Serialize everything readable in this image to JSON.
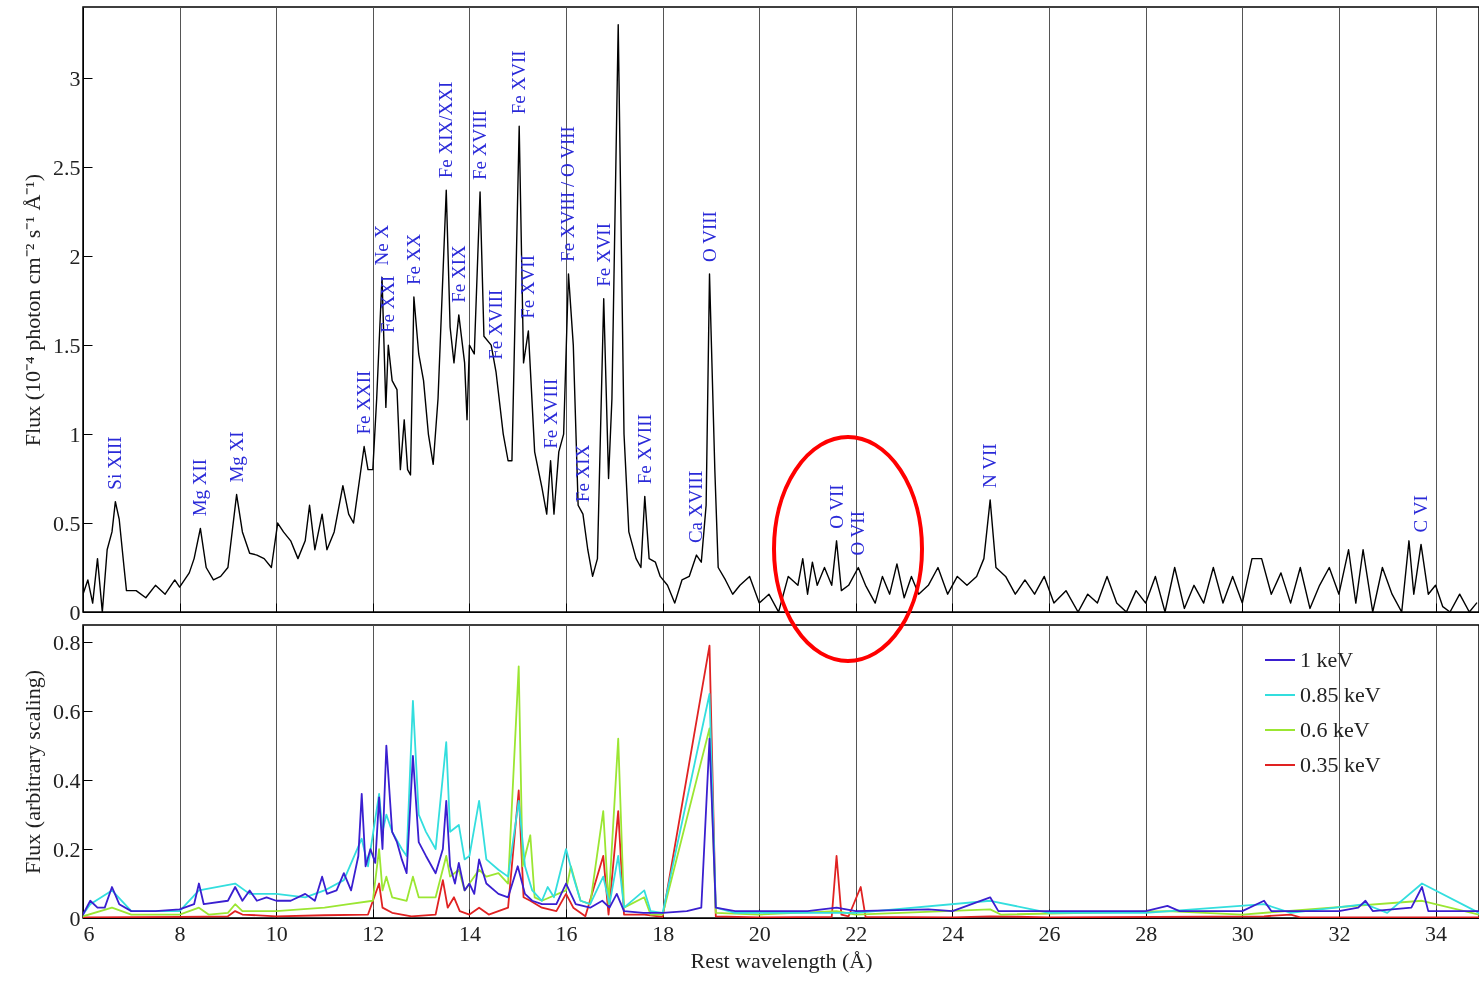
{
  "chart_data": [
    {
      "type": "line",
      "ylabel": "Flux (10⁻⁴ photon cm⁻² s⁻¹ Å⁻¹)",
      "xlim": [
        6,
        34.9
      ],
      "xticks": [
        6,
        8,
        10,
        12,
        14,
        16,
        18,
        20,
        22,
        24,
        26,
        28,
        30,
        32,
        34
      ],
      "ylim": [
        0,
        3.4
      ],
      "yticks": [
        0,
        0.5,
        1,
        1.5,
        2,
        2.5,
        3
      ],
      "grid": "x",
      "tick_labels": "y",
      "series": [
        {
          "color": "#000000",
          "x": [
            6.0,
            6.1,
            6.2,
            6.3,
            6.4,
            6.5,
            6.6,
            6.67,
            6.75,
            6.85,
            6.9,
            7.1,
            7.3,
            7.5,
            7.7,
            7.9,
            8.0,
            8.2,
            8.3,
            8.43,
            8.55,
            8.7,
            8.85,
            9.0,
            9.18,
            9.3,
            9.45,
            9.6,
            9.75,
            9.9,
            10.03,
            10.15,
            10.3,
            10.45,
            10.6,
            10.69,
            10.8,
            10.95,
            11.05,
            11.2,
            11.38,
            11.5,
            11.6,
            11.82,
            11.9,
            12.0,
            12.08,
            12.19,
            12.27,
            12.32,
            12.4,
            12.5,
            12.57,
            12.65,
            12.72,
            12.78,
            12.85,
            12.95,
            13.05,
            13.15,
            13.25,
            13.35,
            13.52,
            13.6,
            13.68,
            13.78,
            13.9,
            13.95,
            14.0,
            14.1,
            14.22,
            14.3,
            14.45,
            14.55,
            14.7,
            14.8,
            14.88,
            15.03,
            15.12,
            15.22,
            15.35,
            15.5,
            15.6,
            15.68,
            15.75,
            15.85,
            15.95,
            16.05,
            16.15,
            16.25,
            16.35,
            16.45,
            16.55,
            16.65,
            16.78,
            16.88,
            16.95,
            17.08,
            17.2,
            17.3,
            17.45,
            17.55,
            17.63,
            17.72,
            17.85,
            17.95,
            18.1,
            18.25,
            18.4,
            18.55,
            18.7,
            18.8,
            18.9,
            18.97,
            19.08,
            19.15,
            19.3,
            19.45,
            19.6,
            19.8,
            20.0,
            20.2,
            20.4,
            20.6,
            20.8,
            20.9,
            21.0,
            21.1,
            21.2,
            21.35,
            21.5,
            21.6,
            21.7,
            21.85,
            22.05,
            22.2,
            22.4,
            22.55,
            22.7,
            22.85,
            23.0,
            23.15,
            23.3,
            23.5,
            23.7,
            23.9,
            24.1,
            24.3,
            24.5,
            24.65,
            24.78,
            24.9,
            25.1,
            25.3,
            25.5,
            25.7,
            25.9,
            26.1,
            26.35,
            26.6,
            26.8,
            27.0,
            27.2,
            27.4,
            27.6,
            27.8,
            28.0,
            28.2,
            28.4,
            28.6,
            28.8,
            29.0,
            29.2,
            29.4,
            29.6,
            29.8,
            30.0,
            30.2,
            30.4,
            30.6,
            30.8,
            31.0,
            31.2,
            31.4,
            31.6,
            31.8,
            32.0,
            32.2,
            32.35,
            32.5,
            32.7,
            32.9,
            33.1,
            33.3,
            33.45,
            33.55,
            33.7,
            33.85,
            34.0,
            34.15,
            34.3,
            34.5,
            34.7,
            34.85
          ],
          "values": [
            0.1,
            0.18,
            0.05,
            0.3,
            0,
            0.35,
            0.45,
            0.62,
            0.52,
            0.25,
            0.12,
            0.12,
            0.08,
            0.15,
            0.1,
            0.18,
            0.14,
            0.22,
            0.3,
            0.47,
            0.25,
            0.18,
            0.2,
            0.25,
            0.66,
            0.45,
            0.33,
            0.32,
            0.3,
            0.25,
            0.5,
            0.45,
            0.4,
            0.3,
            0.4,
            0.6,
            0.35,
            0.55,
            0.35,
            0.45,
            0.71,
            0.55,
            0.5,
            0.93,
            0.8,
            0.8,
            1.2,
            1.88,
            1.15,
            1.5,
            1.3,
            1.25,
            0.8,
            1.08,
            0.8,
            0.77,
            1.77,
            1.45,
            1.3,
            1.0,
            0.83,
            1.2,
            2.37,
            1.6,
            1.4,
            1.67,
            1.4,
            1.08,
            1.5,
            1.45,
            2.36,
            1.55,
            1.5,
            1.35,
            1.0,
            0.85,
            0.85,
            2.73,
            1.4,
            1.58,
            0.9,
            0.7,
            0.55,
            0.85,
            0.55,
            0.9,
            1.0,
            1.9,
            1.5,
            0.6,
            0.55,
            0.35,
            0.2,
            0.3,
            1.76,
            0.75,
            1.2,
            3.3,
            1.0,
            0.45,
            0.3,
            0.25,
            0.65,
            0.3,
            0.28,
            0.2,
            0.15,
            0.05,
            0.18,
            0.2,
            0.32,
            0.28,
            0.6,
            1.9,
            0.8,
            0.25,
            0.18,
            0.1,
            0.15,
            0.2,
            0.05,
            0.1,
            0,
            0.2,
            0.15,
            0.3,
            0.1,
            0.28,
            0.15,
            0.25,
            0.15,
            0.4,
            0.12,
            0.15,
            0.25,
            0.15,
            0.05,
            0.2,
            0.1,
            0.27,
            0.08,
            0.2,
            0.1,
            0.15,
            0.25,
            0.1,
            0.2,
            0.15,
            0.2,
            0.3,
            0.63,
            0.25,
            0.2,
            0.1,
            0.18,
            0.1,
            0.2,
            0.05,
            0.12,
            0,
            0.1,
            0.05,
            0.2,
            0.05,
            0,
            0.12,
            0.05,
            0.2,
            0,
            0.25,
            0.02,
            0.15,
            0.05,
            0.25,
            0.05,
            0.2,
            0.05,
            0.3,
            0.3,
            0.1,
            0.22,
            0.05,
            0.25,
            0.02,
            0.15,
            0.25,
            0.1,
            0.35,
            0.05,
            0.35,
            0,
            0.25,
            0.1,
            0,
            0.4,
            0.1,
            0.38,
            0.1,
            0.15,
            0.03,
            0,
            0.1,
            0,
            0.05
          ]
        }
      ],
      "annotations": [
        {
          "text": "Si XIII",
          "x": 6.67,
          "y": 0.62
        },
        {
          "text": "Mg XII",
          "x": 8.43,
          "y": 0.47
        },
        {
          "text": "Mg XI",
          "x": 9.18,
          "y": 0.66
        },
        {
          "text": "Fe XXII",
          "x": 11.82,
          "y": 0.93
        },
        {
          "text": "Ne X",
          "x": 12.19,
          "y": 1.88
        },
        {
          "text": "Fe XXI",
          "x": 12.32,
          "y": 1.5
        },
        {
          "text": "Fe XX",
          "x": 12.85,
          "y": 1.77
        },
        {
          "text": "Fe XIX/XXI",
          "x": 13.52,
          "y": 2.37
        },
        {
          "text": "Fe XIX",
          "x": 13.78,
          "y": 1.67
        },
        {
          "text": "Fe XVIII",
          "x": 14.22,
          "y": 2.36
        },
        {
          "text": "Fe XVIII",
          "x": 14.55,
          "y": 1.35
        },
        {
          "text": "Fe XVII",
          "x": 15.03,
          "y": 2.73
        },
        {
          "text": "Fe XVII",
          "x": 15.22,
          "y": 1.58
        },
        {
          "text": "Fe XVIII",
          "x": 15.68,
          "y": 0.85
        },
        {
          "text": "Fe XVIII / O VIII",
          "x": 16.05,
          "y": 1.9
        },
        {
          "text": "Fe XIX",
          "x": 16.35,
          "y": 0.55
        },
        {
          "text": "Fe XVII",
          "x": 16.78,
          "y": 1.76
        },
        {
          "text": "Fe XVIII",
          "x": 17.63,
          "y": 0.65
        },
        {
          "text": "Ca XVIII",
          "x": 18.7,
          "y": 0.32
        },
        {
          "text": "O VIII",
          "x": 18.97,
          "y": 1.9
        },
        {
          "text": "O VII",
          "x": 21.6,
          "y": 0.4
        },
        {
          "text": "O VII",
          "x": 22.05,
          "y": 0.25
        },
        {
          "text": "N VII",
          "x": 24.78,
          "y": 0.63
        },
        {
          "text": "C VI",
          "x": 33.7,
          "y": 0.38
        }
      ]
    },
    {
      "type": "line",
      "xlabel": "Rest wavelength (Å)",
      "ylabel": "Flux (arbitrary scaling)",
      "xlim": [
        6,
        34.9
      ],
      "xticks": [
        6,
        8,
        10,
        12,
        14,
        16,
        18,
        20,
        22,
        24,
        26,
        28,
        30,
        32,
        34
      ],
      "ylim": [
        0,
        0.85
      ],
      "yticks": [
        0,
        0.2,
        0.4,
        0.6,
        0.8
      ],
      "grid": "x",
      "legend": "top right",
      "series": [
        {
          "name": "1 keV",
          "color": "#3a1fd0",
          "x": [
            6,
            6.15,
            6.3,
            6.45,
            6.6,
            6.75,
            7.0,
            7.5,
            8.0,
            8.3,
            8.4,
            8.5,
            9.0,
            9.15,
            9.3,
            9.45,
            9.6,
            9.8,
            10.0,
            10.3,
            10.6,
            10.8,
            10.95,
            11.05,
            11.25,
            11.4,
            11.55,
            11.7,
            11.77,
            11.85,
            11.95,
            12.05,
            12.13,
            12.2,
            12.28,
            12.4,
            12.5,
            12.6,
            12.7,
            12.83,
            12.95,
            13.1,
            13.3,
            13.45,
            13.52,
            13.6,
            13.7,
            13.78,
            13.9,
            14.0,
            14.1,
            14.2,
            14.35,
            14.6,
            14.8,
            15.0,
            15.15,
            15.3,
            15.5,
            15.8,
            16.0,
            16.2,
            16.5,
            16.75,
            16.9,
            17.05,
            17.2,
            17.6,
            18.0,
            18.5,
            18.8,
            18.97,
            19.1,
            19.5,
            20,
            21,
            21.6,
            22,
            23.5,
            24,
            24.78,
            24.95,
            26,
            27,
            28,
            28.45,
            28.7,
            30,
            30.45,
            30.6,
            32,
            32.4,
            32.55,
            32.7,
            33.5,
            33.72,
            33.85,
            34.9
          ],
          "values": [
            0.01,
            0.05,
            0.03,
            0.03,
            0.09,
            0.04,
            0.02,
            0.02,
            0.025,
            0.04,
            0.1,
            0.04,
            0.05,
            0.09,
            0.05,
            0.08,
            0.05,
            0.06,
            0.05,
            0.05,
            0.07,
            0.05,
            0.12,
            0.07,
            0.08,
            0.13,
            0.08,
            0.18,
            0.36,
            0.15,
            0.2,
            0.16,
            0.35,
            0.2,
            0.5,
            0.25,
            0.22,
            0.17,
            0.13,
            0.47,
            0.22,
            0.18,
            0.13,
            0.2,
            0.34,
            0.15,
            0.1,
            0.16,
            0.08,
            0.1,
            0.07,
            0.17,
            0.1,
            0.07,
            0.06,
            0.15,
            0.07,
            0.05,
            0.04,
            0.04,
            0.1,
            0.04,
            0.03,
            0.05,
            0.03,
            0.07,
            0.02,
            0.015,
            0.015,
            0.02,
            0.03,
            0.52,
            0.03,
            0.02,
            0.02,
            0.02,
            0.03,
            0.02,
            0.025,
            0.02,
            0.06,
            0.02,
            0.02,
            0.02,
            0.02,
            0.035,
            0.02,
            0.02,
            0.05,
            0.02,
            0.02,
            0.03,
            0.05,
            0.02,
            0.03,
            0.09,
            0.02,
            0.02
          ]
        },
        {
          "name": "0.85 keV",
          "color": "#33dede",
          "x": [
            6,
            6.15,
            6.6,
            7,
            8,
            8.4,
            9.15,
            9.45,
            10,
            10.6,
            11,
            11.4,
            11.77,
            11.9,
            12.13,
            12.2,
            12.28,
            12.4,
            12.6,
            12.7,
            12.83,
            12.95,
            13.1,
            13.3,
            13.52,
            13.6,
            13.78,
            13.9,
            14.0,
            14.2,
            14.35,
            14.6,
            14.8,
            15.02,
            15.15,
            15.3,
            15.5,
            15.62,
            15.75,
            16.0,
            16.15,
            16.3,
            16.5,
            16.77,
            16.9,
            17.08,
            17.2,
            17.62,
            17.75,
            18,
            18.97,
            19.1,
            19.5,
            20,
            22,
            24.78,
            26,
            28,
            30.45,
            31,
            32.55,
            33,
            33.72,
            34.9
          ],
          "values": [
            0.01,
            0.04,
            0.08,
            0.02,
            0.02,
            0.08,
            0.1,
            0.07,
            0.07,
            0.06,
            0.08,
            0.11,
            0.23,
            0.15,
            0.36,
            0.25,
            0.3,
            0.25,
            0.2,
            0.18,
            0.63,
            0.3,
            0.25,
            0.2,
            0.51,
            0.25,
            0.27,
            0.17,
            0.18,
            0.34,
            0.17,
            0.14,
            0.12,
            0.34,
            0.15,
            0.08,
            0.05,
            0.09,
            0.06,
            0.2,
            0.12,
            0.05,
            0.04,
            0.12,
            0.04,
            0.18,
            0.03,
            0.08,
            0.02,
            0.015,
            0.65,
            0.03,
            0.015,
            0.015,
            0.015,
            0.05,
            0.015,
            0.015,
            0.04,
            0.015,
            0.04,
            0.015,
            0.1,
            0.015
          ]
        },
        {
          "name": "0.6 keV",
          "color": "#9be632",
          "x": [
            6,
            6.6,
            7,
            8,
            8.4,
            8.6,
            9,
            9.15,
            9.3,
            10,
            11,
            11.5,
            12.0,
            12.13,
            12.2,
            12.28,
            12.4,
            12.7,
            12.83,
            12.95,
            13.3,
            13.52,
            13.6,
            13.78,
            13.9,
            14.0,
            14.2,
            14.35,
            14.6,
            14.8,
            15.02,
            15.1,
            15.26,
            15.35,
            15.5,
            16.0,
            16.1,
            16.3,
            16.5,
            16.77,
            16.88,
            17.08,
            17.2,
            17.62,
            17.75,
            18,
            18.97,
            19.1,
            20,
            21.6,
            22,
            24.78,
            25,
            28.45,
            30,
            33.72,
            34.9
          ],
          "values": [
            0.005,
            0.03,
            0.01,
            0.01,
            0.03,
            0.01,
            0.015,
            0.04,
            0.02,
            0.02,
            0.03,
            0.04,
            0.05,
            0.2,
            0.08,
            0.12,
            0.06,
            0.05,
            0.12,
            0.06,
            0.06,
            0.18,
            0.12,
            0.14,
            0.08,
            0.1,
            0.14,
            0.12,
            0.13,
            0.1,
            0.73,
            0.15,
            0.24,
            0.06,
            0.05,
            0.08,
            0.15,
            0.05,
            0.04,
            0.31,
            0.04,
            0.52,
            0.03,
            0.06,
            0.01,
            0.01,
            0.55,
            0.015,
            0.01,
            0.02,
            0.01,
            0.025,
            0.01,
            0.02,
            0.01,
            0.05,
            0.01
          ]
        },
        {
          "name": "0.35 keV",
          "color": "#e02222",
          "x": [
            6,
            8,
            9,
            9.15,
            9.3,
            10,
            11,
            11.9,
            12.13,
            12.2,
            12.4,
            12.8,
            13.3,
            13.45,
            13.55,
            13.68,
            13.8,
            14,
            14.2,
            14.4,
            14.8,
            15.02,
            15.12,
            15.26,
            15.5,
            15.8,
            16.0,
            16.15,
            16.4,
            16.77,
            16.88,
            17.08,
            17.2,
            17.62,
            18,
            18.97,
            19.1,
            20,
            21.5,
            21.6,
            21.7,
            21.85,
            22.1,
            22.2,
            24,
            24.78,
            26,
            30.45,
            31,
            31.2,
            34.9
          ],
          "values": [
            0.002,
            0.003,
            0.005,
            0.02,
            0.01,
            0.005,
            0.008,
            0.01,
            0.1,
            0.03,
            0.015,
            0.005,
            0.01,
            0.11,
            0.03,
            0.06,
            0.02,
            0.01,
            0.03,
            0.01,
            0.03,
            0.37,
            0.06,
            0.05,
            0.03,
            0.02,
            0.07,
            0.03,
            0.005,
            0.18,
            0.01,
            0.31,
            0.01,
            0.01,
            0.003,
            0.79,
            0.005,
            0.002,
            0.003,
            0.18,
            0.01,
            0.005,
            0.09,
            0.003,
            0.002,
            0.005,
            0.002,
            0.005,
            0.01,
            0.002,
            0.002
          ]
        }
      ]
    }
  ]
}
